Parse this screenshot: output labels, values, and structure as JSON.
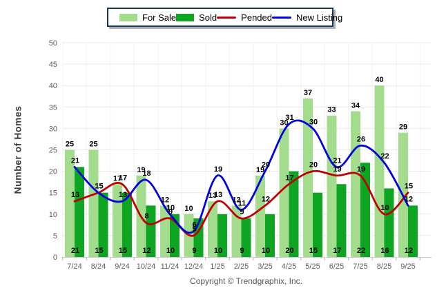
{
  "legend": {
    "items": [
      {
        "label": "For Sale",
        "swatch": "bar",
        "series": "For Sale"
      },
      {
        "label": "Sold",
        "swatch": "bar",
        "series": "Sold"
      },
      {
        "label": "Pended",
        "swatch": "line",
        "series": "Pended"
      },
      {
        "label": "New Listing",
        "swatch": "line",
        "series": "New Listing"
      }
    ],
    "border_color": "#17375D"
  },
  "chart_data": {
    "type": "bar+line",
    "title": "",
    "xlabel": "",
    "ylabel": "Number of Homes",
    "ylim": [
      0,
      50
    ],
    "ytick_step": 5,
    "grid": true,
    "legend_position": "top-center",
    "categories": [
      "7/24",
      "8/24",
      "9/24",
      "10/24",
      "11/24",
      "12/24",
      "1/25",
      "2/25",
      "3/25",
      "4/25",
      "5/25",
      "6/25",
      "7/25",
      "8/25",
      "9/25"
    ],
    "series": [
      {
        "name": "For Sale",
        "type": "bar",
        "color": "#A4DC8E",
        "values": [
          25,
          25,
          17,
          19,
          12,
          10,
          13,
          12,
          19,
          30,
          37,
          33,
          34,
          40,
          29
        ]
      },
      {
        "name": "Sold",
        "type": "bar",
        "color": "#0DA521",
        "values": [
          21,
          15,
          15,
          12,
          10,
          9,
          10,
          9,
          10,
          20,
          15,
          17,
          22,
          16,
          12
        ]
      },
      {
        "name": "Pended",
        "type": "line",
        "color": "#C00000",
        "values": [
          13,
          15,
          17,
          8,
          9,
          5,
          13,
          9,
          12,
          17,
          20,
          19,
          19,
          10,
          15
        ]
      },
      {
        "name": "New Listing",
        "type": "line",
        "color": "#0000E0",
        "values": [
          21,
          15,
          13,
          18,
          10,
          6,
          19,
          11,
          20,
          31,
          30,
          21,
          26,
          22,
          12
        ]
      }
    ]
  },
  "copyright": "Copyright © Trendgraphix, Inc.",
  "colors": {
    "grid_h": "#E9E9E9",
    "grid_v": "#F2F2F2",
    "axis": "#C8C8C8",
    "tick": "#B5B5B5",
    "tick_label": "#5E5E5E",
    "value_label": "#000000"
  }
}
